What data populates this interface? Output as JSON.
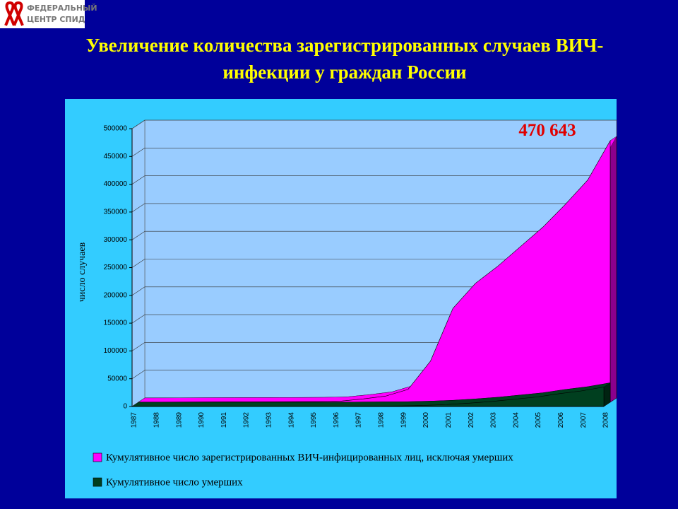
{
  "logo_text": [
    "ФЕДЕРАЛЬНЫЙ",
    "ЦЕНТР СПИД"
  ],
  "chart_data": {
    "type": "area3d",
    "title": [
      "Увеличение количества зарегистрированных случаев ВИЧ-",
      "инфекции у граждан России"
    ],
    "y_label": "число случаев",
    "annotation": "470 643",
    "categories": [
      "1987",
      "1988",
      "1989",
      "1990",
      "1991",
      "1992",
      "1993",
      "1994",
      "1995",
      "1996",
      "1997",
      "1998",
      "1999",
      "2000",
      "2001",
      "2002",
      "2003",
      "2004",
      "2005",
      "2006",
      "2007",
      "2008"
    ],
    "series": [
      {
        "name": "Кумулятивное число умерших",
        "color": "#003f1f",
        "values": [
          0,
          0,
          0,
          0,
          0,
          0,
          0,
          0,
          0,
          0,
          500,
          800,
          1000,
          2000,
          3500,
          6000,
          9000,
          13000,
          17000,
          23000,
          28000,
          35000
        ]
      },
      {
        "name": "Кумулятивное число зарегистрированных ВИЧ-инфицированных лиц, исключая умерших",
        "color": "#ff00ff",
        "values": [
          100,
          200,
          400,
          600,
          700,
          800,
          900,
          1000,
          1200,
          2000,
          6000,
          11000,
          23000,
          74000,
          169000,
          214000,
          245000,
          280000,
          315000,
          356000,
          400000,
          470643
        ]
      }
    ],
    "ylim": [
      0,
      500000
    ],
    "yticks": [
      0,
      50000,
      100000,
      150000,
      200000,
      250000,
      300000,
      350000,
      400000,
      450000,
      500000
    ],
    "grid": true
  }
}
